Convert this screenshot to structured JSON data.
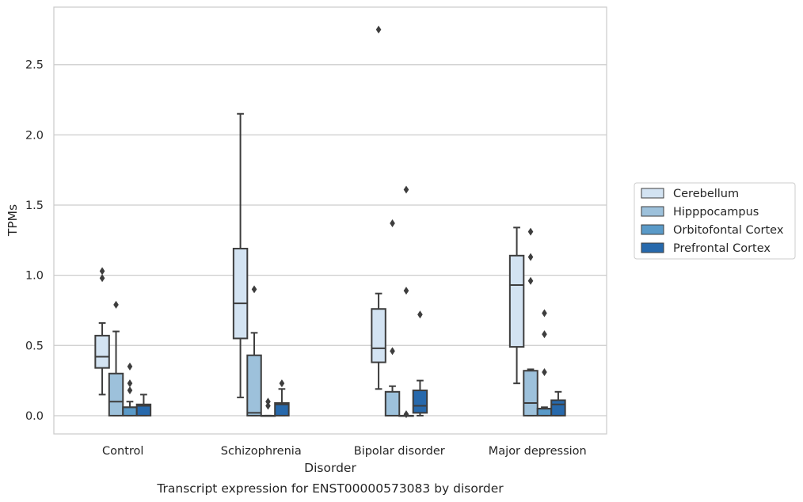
{
  "chart_data": {
    "type": "box",
    "caption": "Transcript expression for ENST00000573083 by disorder",
    "xlabel": "Disorder",
    "ylabel": "TPMs",
    "ylim": [
      -0.13,
      2.91
    ],
    "yticks": [
      "0.0",
      "0.5",
      "1.0",
      "1.5",
      "2.0",
      "2.5"
    ],
    "grid": "horizontal",
    "legend_position": "right",
    "categories": [
      "Control",
      "Schizophrenia",
      "Bipolar disorder",
      "Major depression"
    ],
    "series": [
      {
        "name": "Cerebellum",
        "color": "#d3e3f2",
        "boxes": [
          {
            "q1": 0.34,
            "median": 0.42,
            "q3": 0.57,
            "whislo": 0.15,
            "whishi": 0.66,
            "fliers": [
              0.98,
              1.03
            ]
          },
          {
            "q1": 0.55,
            "median": 0.8,
            "q3": 1.19,
            "whislo": 0.13,
            "whishi": 2.15,
            "fliers": []
          },
          {
            "q1": 0.38,
            "median": 0.48,
            "q3": 0.76,
            "whislo": 0.19,
            "whishi": 0.87,
            "fliers": [
              2.75
            ]
          },
          {
            "q1": 0.49,
            "median": 0.93,
            "q3": 1.14,
            "whislo": 0.23,
            "whishi": 1.34,
            "fliers": []
          }
        ]
      },
      {
        "name": "Hipppocampus",
        "color": "#9dc1db",
        "boxes": [
          {
            "q1": 0.0,
            "median": 0.1,
            "q3": 0.3,
            "whislo": 0.0,
            "whishi": 0.6,
            "fliers": [
              0.79
            ]
          },
          {
            "q1": 0.0,
            "median": 0.02,
            "q3": 0.43,
            "whislo": 0.0,
            "whishi": 0.59,
            "fliers": [
              0.9
            ]
          },
          {
            "q1": 0.0,
            "median": 0.0,
            "q3": 0.17,
            "whislo": 0.0,
            "whishi": 0.21,
            "fliers": [
              0.46,
              1.37
            ]
          },
          {
            "q1": 0.0,
            "median": 0.09,
            "q3": 0.32,
            "whislo": 0.0,
            "whishi": 0.33,
            "fliers": [
              0.96,
              1.13,
              1.31
            ]
          }
        ]
      },
      {
        "name": "Orbitofontal Cortex",
        "color": "#5a9ac8",
        "boxes": [
          {
            "q1": 0.0,
            "median": 0.06,
            "q3": 0.06,
            "whislo": 0.0,
            "whishi": 0.1,
            "fliers": [
              0.18,
              0.23,
              0.35
            ]
          },
          {
            "q1": 0.0,
            "median": 0.0,
            "q3": 0.0,
            "whislo": 0.0,
            "whishi": 0.0,
            "fliers": [
              0.07,
              0.1
            ]
          },
          {
            "q1": 0.0,
            "median": 0.0,
            "q3": 0.0,
            "whislo": 0.0,
            "whishi": 0.0,
            "fliers": [
              0.01,
              0.89,
              1.61
            ]
          },
          {
            "q1": 0.0,
            "median": 0.05,
            "q3": 0.05,
            "whislo": 0.0,
            "whishi": 0.06,
            "fliers": [
              0.31,
              0.58,
              0.73
            ]
          }
        ]
      },
      {
        "name": "Prefrontal Cortex",
        "color": "#2769ac",
        "boxes": [
          {
            "q1": 0.0,
            "median": 0.07,
            "q3": 0.08,
            "whislo": 0.0,
            "whishi": 0.15,
            "fliers": []
          },
          {
            "q1": 0.0,
            "median": 0.08,
            "q3": 0.09,
            "whislo": 0.0,
            "whishi": 0.19,
            "fliers": [
              0.23
            ]
          },
          {
            "q1": 0.02,
            "median": 0.07,
            "q3": 0.18,
            "whislo": 0.0,
            "whishi": 0.25,
            "fliers": [
              0.72
            ]
          },
          {
            "q1": 0.0,
            "median": 0.08,
            "q3": 0.11,
            "whislo": 0.0,
            "whishi": 0.17,
            "fliers": []
          }
        ]
      }
    ]
  }
}
